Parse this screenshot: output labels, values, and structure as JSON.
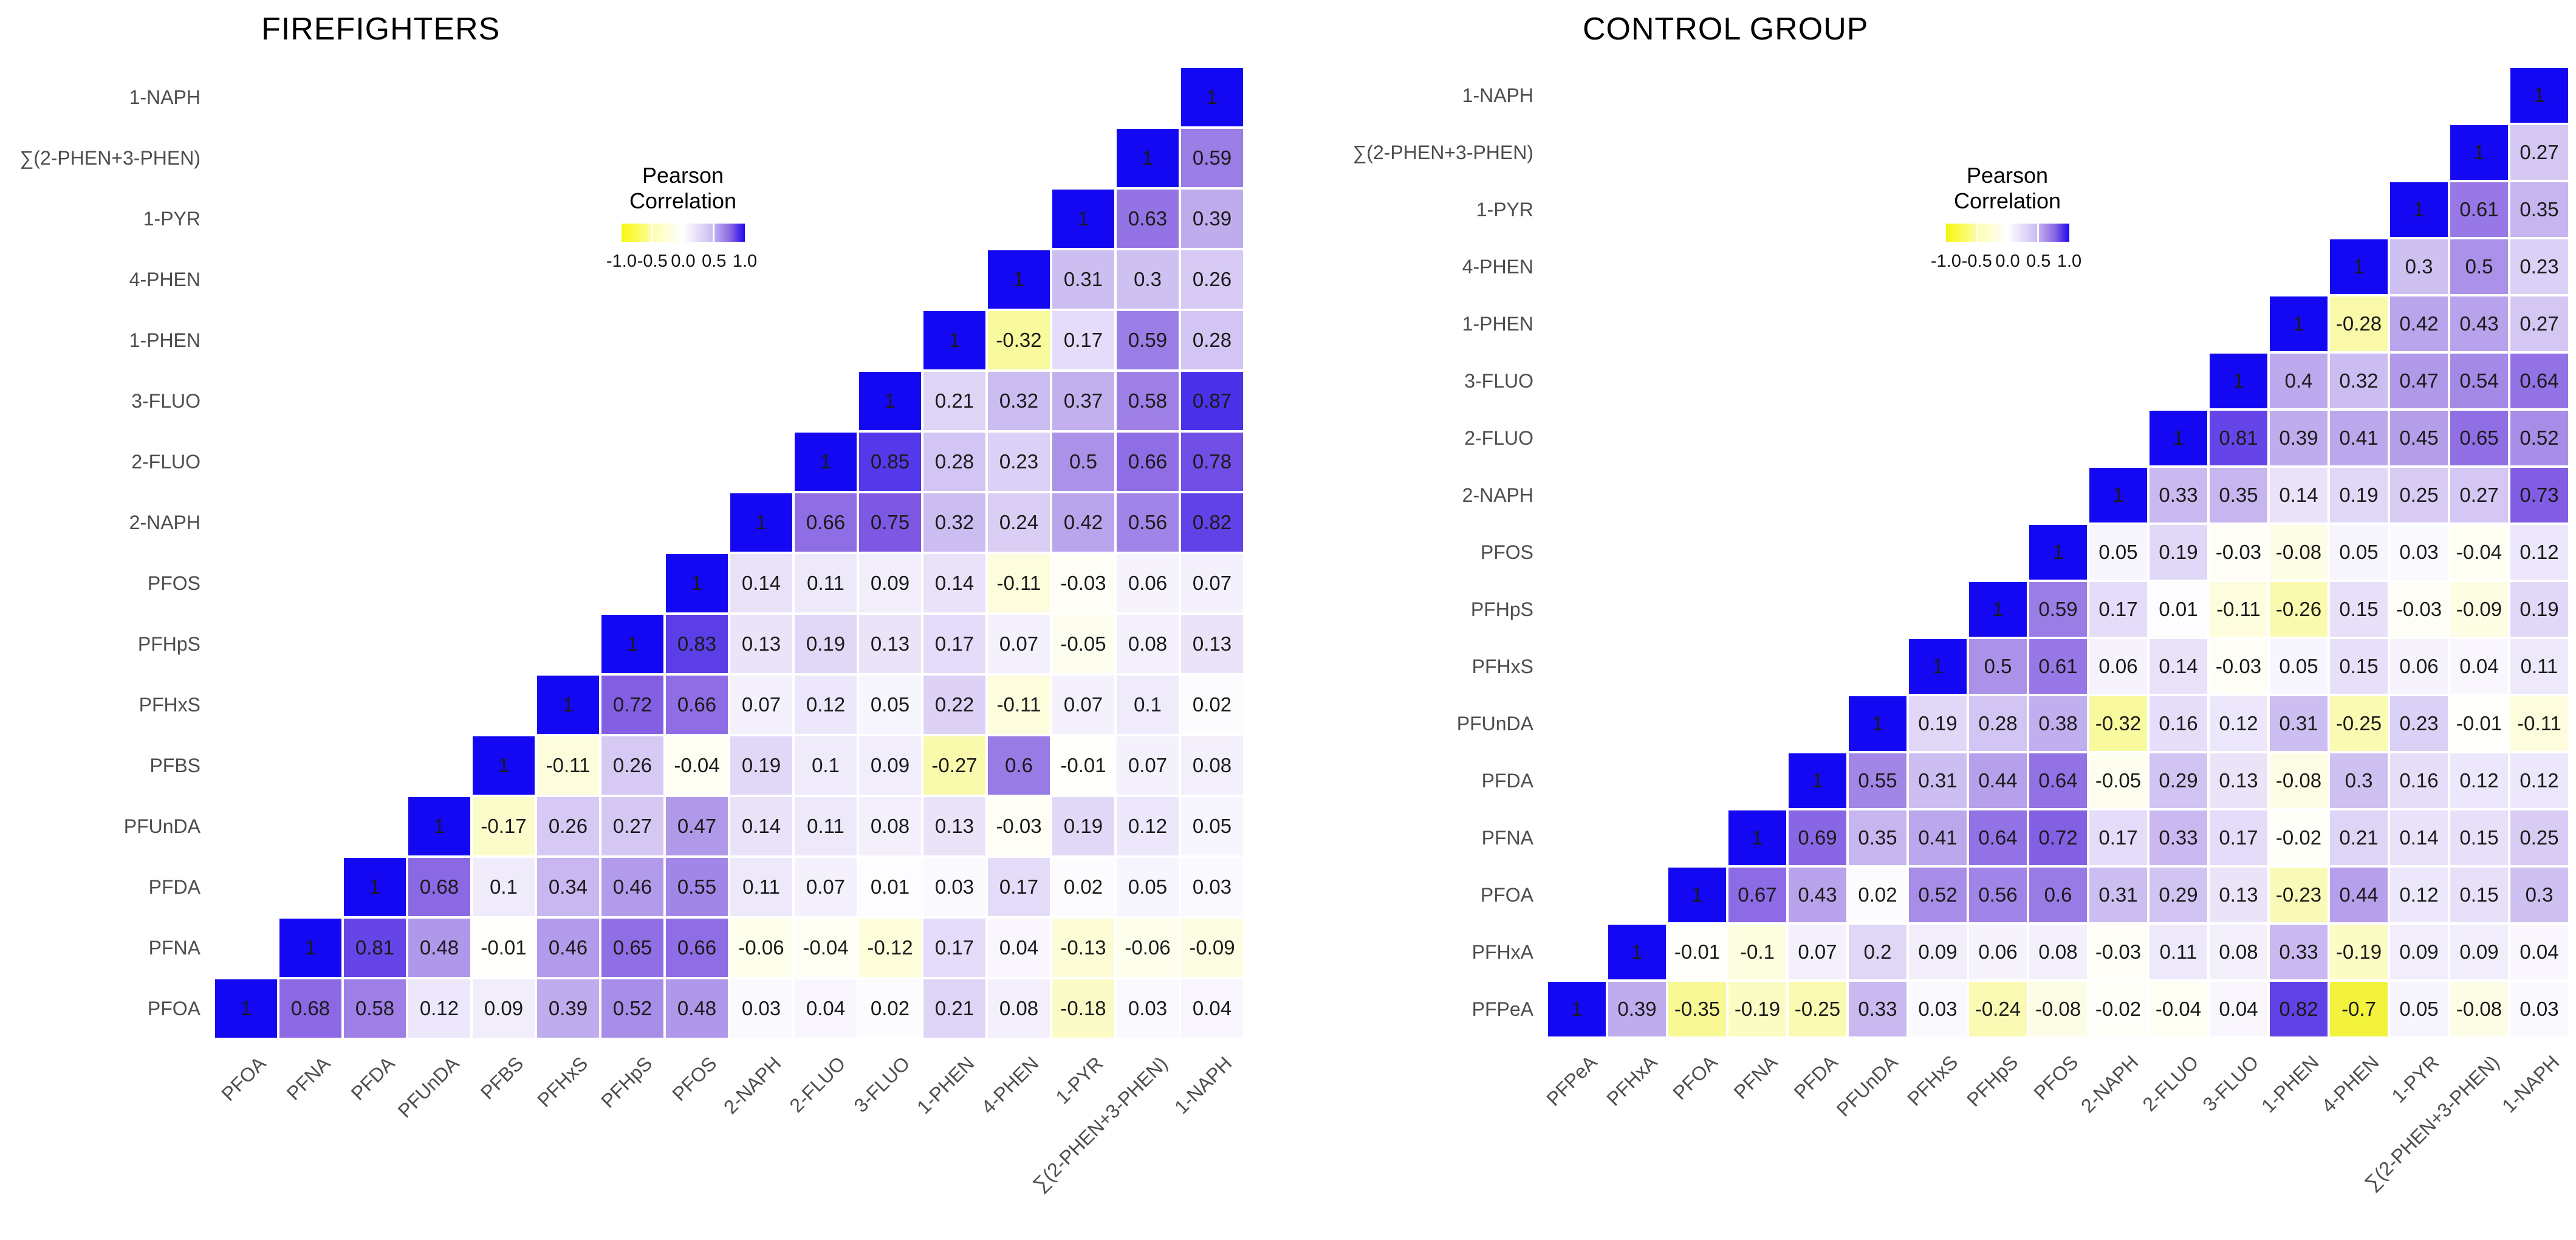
{
  "legend": {
    "title_line1": "Pearson",
    "title_line2": "Correlation",
    "ticks": [
      "-1.0",
      "-0.5",
      "0.0",
      "0.5",
      "1.0"
    ]
  },
  "colors": {
    "positive_max_blue": "#1408f2",
    "mid_purple": "#ab92e8",
    "zero_white": "#ffffff",
    "negative_max_yellow": "#f7f705",
    "axis_label_gray": "#4d4d4d",
    "value_text": "#1a1a1a"
  },
  "chart_data": [
    {
      "type": "heatmap",
      "title": "FIREFIGHTERS",
      "legend_title": "Pearson Correlation",
      "legend_position": "inset upper-middle-left",
      "grid": false,
      "value_range": [
        -1,
        1
      ],
      "row_labels": [
        "1-NAPH",
        "∑(2-PHEN+3-PHEN)",
        "1-PYR",
        "4-PHEN",
        "1-PHEN",
        "3-FLUO",
        "2-FLUO",
        "2-NAPH",
        "PFOS",
        "PFHpS",
        "PFHxS",
        "PFBS",
        "PFUnDA",
        "PFDA",
        "PFNA",
        "PFOA"
      ],
      "col_labels": [
        "PFOA",
        "PFNA",
        "PFDA",
        "PFUnDA",
        "PFBS",
        "PFHxS",
        "PFHpS",
        "PFOS",
        "2-NAPH",
        "2-FLUO",
        "3-FLUO",
        "1-PHEN",
        "4-PHEN",
        "1-PYR",
        "∑(2-PHEN+3-PHEN)",
        "1-NAPH"
      ],
      "rows": [
        [
          "1"
        ],
        [
          "1",
          "0.59"
        ],
        [
          "1",
          "0.63",
          "0.39"
        ],
        [
          "1",
          "0.31",
          "0.3",
          "0.26"
        ],
        [
          "1",
          "-0.32",
          "0.17",
          "0.59",
          "0.28"
        ],
        [
          "1",
          "0.21",
          "0.32",
          "0.37",
          "0.58",
          "0.87"
        ],
        [
          "1",
          "0.85",
          "0.28",
          "0.23",
          "0.5",
          "0.66",
          "0.78"
        ],
        [
          "1",
          "0.66",
          "0.75",
          "0.32",
          "0.24",
          "0.42",
          "0.56",
          "0.82"
        ],
        [
          "1",
          "0.14",
          "0.11",
          "0.09",
          "0.14",
          "-0.11",
          "-0.03",
          "0.06",
          "0.07"
        ],
        [
          "1",
          "0.83",
          "0.13",
          "0.19",
          "0.13",
          "0.17",
          "0.07",
          "-0.05",
          "0.08",
          "0.13"
        ],
        [
          "1",
          "0.72",
          "0.66",
          "0.07",
          "0.12",
          "0.05",
          "0.22",
          "-0.11",
          "0.07",
          "0.1",
          "0.02"
        ],
        [
          "1",
          "-0.11",
          "0.26",
          "-0.04",
          "0.19",
          "0.1",
          "0.09",
          "-0.27",
          "0.6",
          "-0.01",
          "0.07",
          "0.08"
        ],
        [
          "1",
          "-0.17",
          "0.26",
          "0.27",
          "0.47",
          "0.14",
          "0.11",
          "0.08",
          "0.13",
          "-0.03",
          "0.19",
          "0.12",
          "0.05"
        ],
        [
          "1",
          "0.68",
          "0.1",
          "0.34",
          "0.46",
          "0.55",
          "0.11",
          "0.07",
          "0.01",
          "0.03",
          "0.17",
          "0.02",
          "0.05",
          "0.03"
        ],
        [
          "1",
          "0.81",
          "0.48",
          "-0.01",
          "0.46",
          "0.65",
          "0.66",
          "-0.06",
          "-0.04",
          "-0.12",
          "0.17",
          "0.04",
          "-0.13",
          "-0.06",
          "-0.09"
        ],
        [
          "1",
          "0.68",
          "0.58",
          "0.12",
          "0.09",
          "0.39",
          "0.52",
          "0.48",
          "0.03",
          "0.04",
          "0.02",
          "0.21",
          "0.08",
          "-0.18",
          "0.03",
          "0.04"
        ]
      ]
    },
    {
      "type": "heatmap",
      "title": "CONTROL GROUP",
      "legend_title": "Pearson Correlation",
      "legend_position": "inset upper-middle-left",
      "grid": false,
      "value_range": [
        -1,
        1
      ],
      "row_labels": [
        "1-NAPH",
        "∑(2-PHEN+3-PHEN)",
        "1-PYR",
        "4-PHEN",
        "1-PHEN",
        "3-FLUO",
        "2-FLUO",
        "2-NAPH",
        "PFOS",
        "PFHpS",
        "PFHxS",
        "PFUnDA",
        "PFDA",
        "PFNA",
        "PFOA",
        "PFHxA",
        "PFPeA"
      ],
      "col_labels": [
        "PFPeA",
        "PFHxA",
        "PFOA",
        "PFNA",
        "PFDA",
        "PFUnDA",
        "PFHxS",
        "PFHpS",
        "PFOS",
        "2-NAPH",
        "2-FLUO",
        "3-FLUO",
        "1-PHEN",
        "4-PHEN",
        "1-PYR",
        "∑(2-PHEN+3-PHEN)",
        "1-NAPH"
      ],
      "rows": [
        [
          "1"
        ],
        [
          "1",
          "0.27"
        ],
        [
          "1",
          "0.61",
          "0.35"
        ],
        [
          "1",
          "0.3",
          "0.5",
          "0.23"
        ],
        [
          "1",
          "-0.28",
          "0.42",
          "0.43",
          "0.27"
        ],
        [
          "1",
          "0.4",
          "0.32",
          "0.47",
          "0.54",
          "0.64"
        ],
        [
          "1",
          "0.81",
          "0.39",
          "0.41",
          "0.45",
          "0.65",
          "0.52"
        ],
        [
          "1",
          "0.33",
          "0.35",
          "0.14",
          "0.19",
          "0.25",
          "0.27",
          "0.73"
        ],
        [
          "1",
          "0.05",
          "0.19",
          "-0.03",
          "-0.08",
          "0.05",
          "0.03",
          "-0.04",
          "0.12"
        ],
        [
          "1",
          "0.59",
          "0.17",
          "0.01",
          "-0.11",
          "-0.26",
          "0.15",
          "-0.03",
          "-0.09",
          "0.19"
        ],
        [
          "1",
          "0.5",
          "0.61",
          "0.06",
          "0.14",
          "-0.03",
          "0.05",
          "0.15",
          "0.06",
          "0.04",
          "0.11"
        ],
        [
          "1",
          "0.19",
          "0.28",
          "0.38",
          "-0.32",
          "0.16",
          "0.12",
          "0.31",
          "-0.25",
          "0.23",
          "-0.01",
          "-0.11"
        ],
        [
          "1",
          "0.55",
          "0.31",
          "0.44",
          "0.64",
          "-0.05",
          "0.29",
          "0.13",
          "-0.08",
          "0.3",
          "0.16",
          "0.12",
          "0.12"
        ],
        [
          "1",
          "0.69",
          "0.35",
          "0.41",
          "0.64",
          "0.72",
          "0.17",
          "0.33",
          "0.17",
          "-0.02",
          "0.21",
          "0.14",
          "0.15",
          "0.25"
        ],
        [
          "1",
          "0.67",
          "0.43",
          "0.02",
          "0.52",
          "0.56",
          "0.6",
          "0.31",
          "0.29",
          "0.13",
          "-0.23",
          "0.44",
          "0.12",
          "0.15",
          "0.3"
        ],
        [
          "1",
          "-0.01",
          "-0.1",
          "0.07",
          "0.2",
          "0.09",
          "0.06",
          "0.08",
          "-0.03",
          "0.11",
          "0.08",
          "0.33",
          "-0.19",
          "0.09",
          "0.09",
          "0.04"
        ],
        [
          "1",
          "0.39",
          "-0.35",
          "-0.19",
          "-0.25",
          "0.33",
          "0.03",
          "-0.24",
          "-0.08",
          "-0.02",
          "-0.04",
          "0.04",
          "0.82",
          "-0.7",
          "0.05",
          "-0.08",
          "0.03"
        ]
      ]
    }
  ]
}
